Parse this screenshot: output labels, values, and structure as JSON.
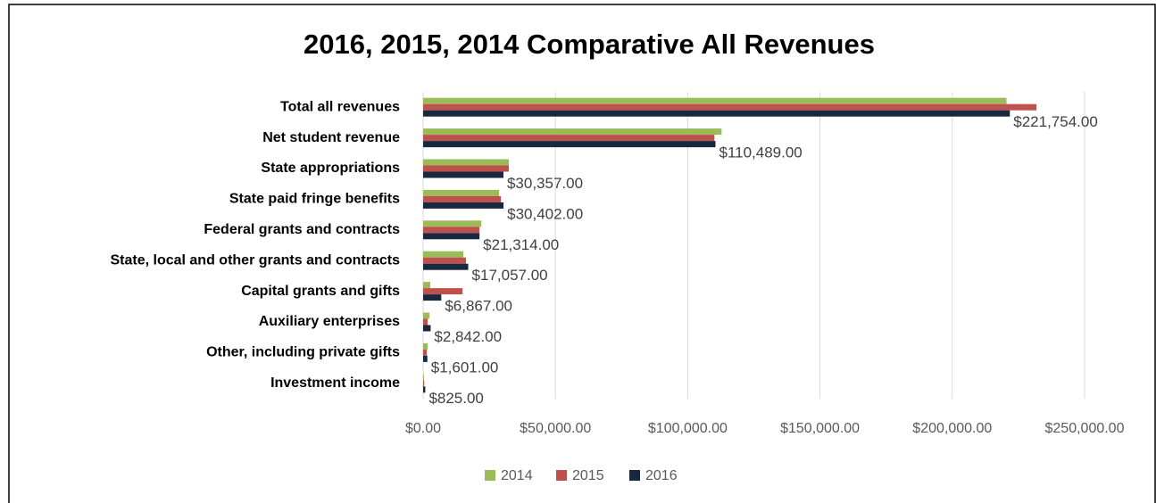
{
  "chart_data": {
    "type": "bar",
    "orientation": "horizontal",
    "title": "2016, 2015, 2014 Comparative All Revenues",
    "categories": [
      "Total all revenues",
      "Net student revenue",
      "State appropriations",
      "State paid fringe benefits",
      "Federal grants and contracts",
      "State, local and other grants and contracts",
      "Capital grants and gifts",
      "Auxiliary enterprises",
      "Other, including private gifts",
      "Investment income"
    ],
    "series": [
      {
        "name": "2014",
        "color": "#9bbb59",
        "values": [
          220500,
          112800,
          32400,
          28700,
          22000,
          15200,
          2700,
          2400,
          1700,
          300
        ]
      },
      {
        "name": "2015",
        "color": "#c0504d",
        "values": [
          231800,
          110100,
          32400,
          29400,
          21300,
          16200,
          14900,
          1700,
          1400,
          400
        ]
      },
      {
        "name": "2016",
        "color": "#17283f",
        "values": [
          221754,
          110489,
          30357,
          30402,
          21314,
          17057,
          6867,
          2842,
          1601,
          825
        ],
        "value_labels": [
          "$221,754.00",
          "$110,489.00",
          "$30,357.00",
          "$30,402.00",
          "$21,314.00",
          "$17,057.00",
          "$6,867.00",
          "$2,842.00",
          "$1,601.00",
          "$825.00"
        ]
      }
    ],
    "xlim": [
      0,
      250000
    ],
    "xticks": [
      {
        "value": 0,
        "label": "$0.00"
      },
      {
        "value": 50000,
        "label": "$50,000.00"
      },
      {
        "value": 100000,
        "label": "$100,000.00"
      },
      {
        "value": 150000,
        "label": "$150,000.00"
      },
      {
        "value": 200000,
        "label": "$200,000.00"
      },
      {
        "value": 250000,
        "label": "$250,000.00"
      }
    ],
    "grid": true,
    "legend": "bottom"
  }
}
